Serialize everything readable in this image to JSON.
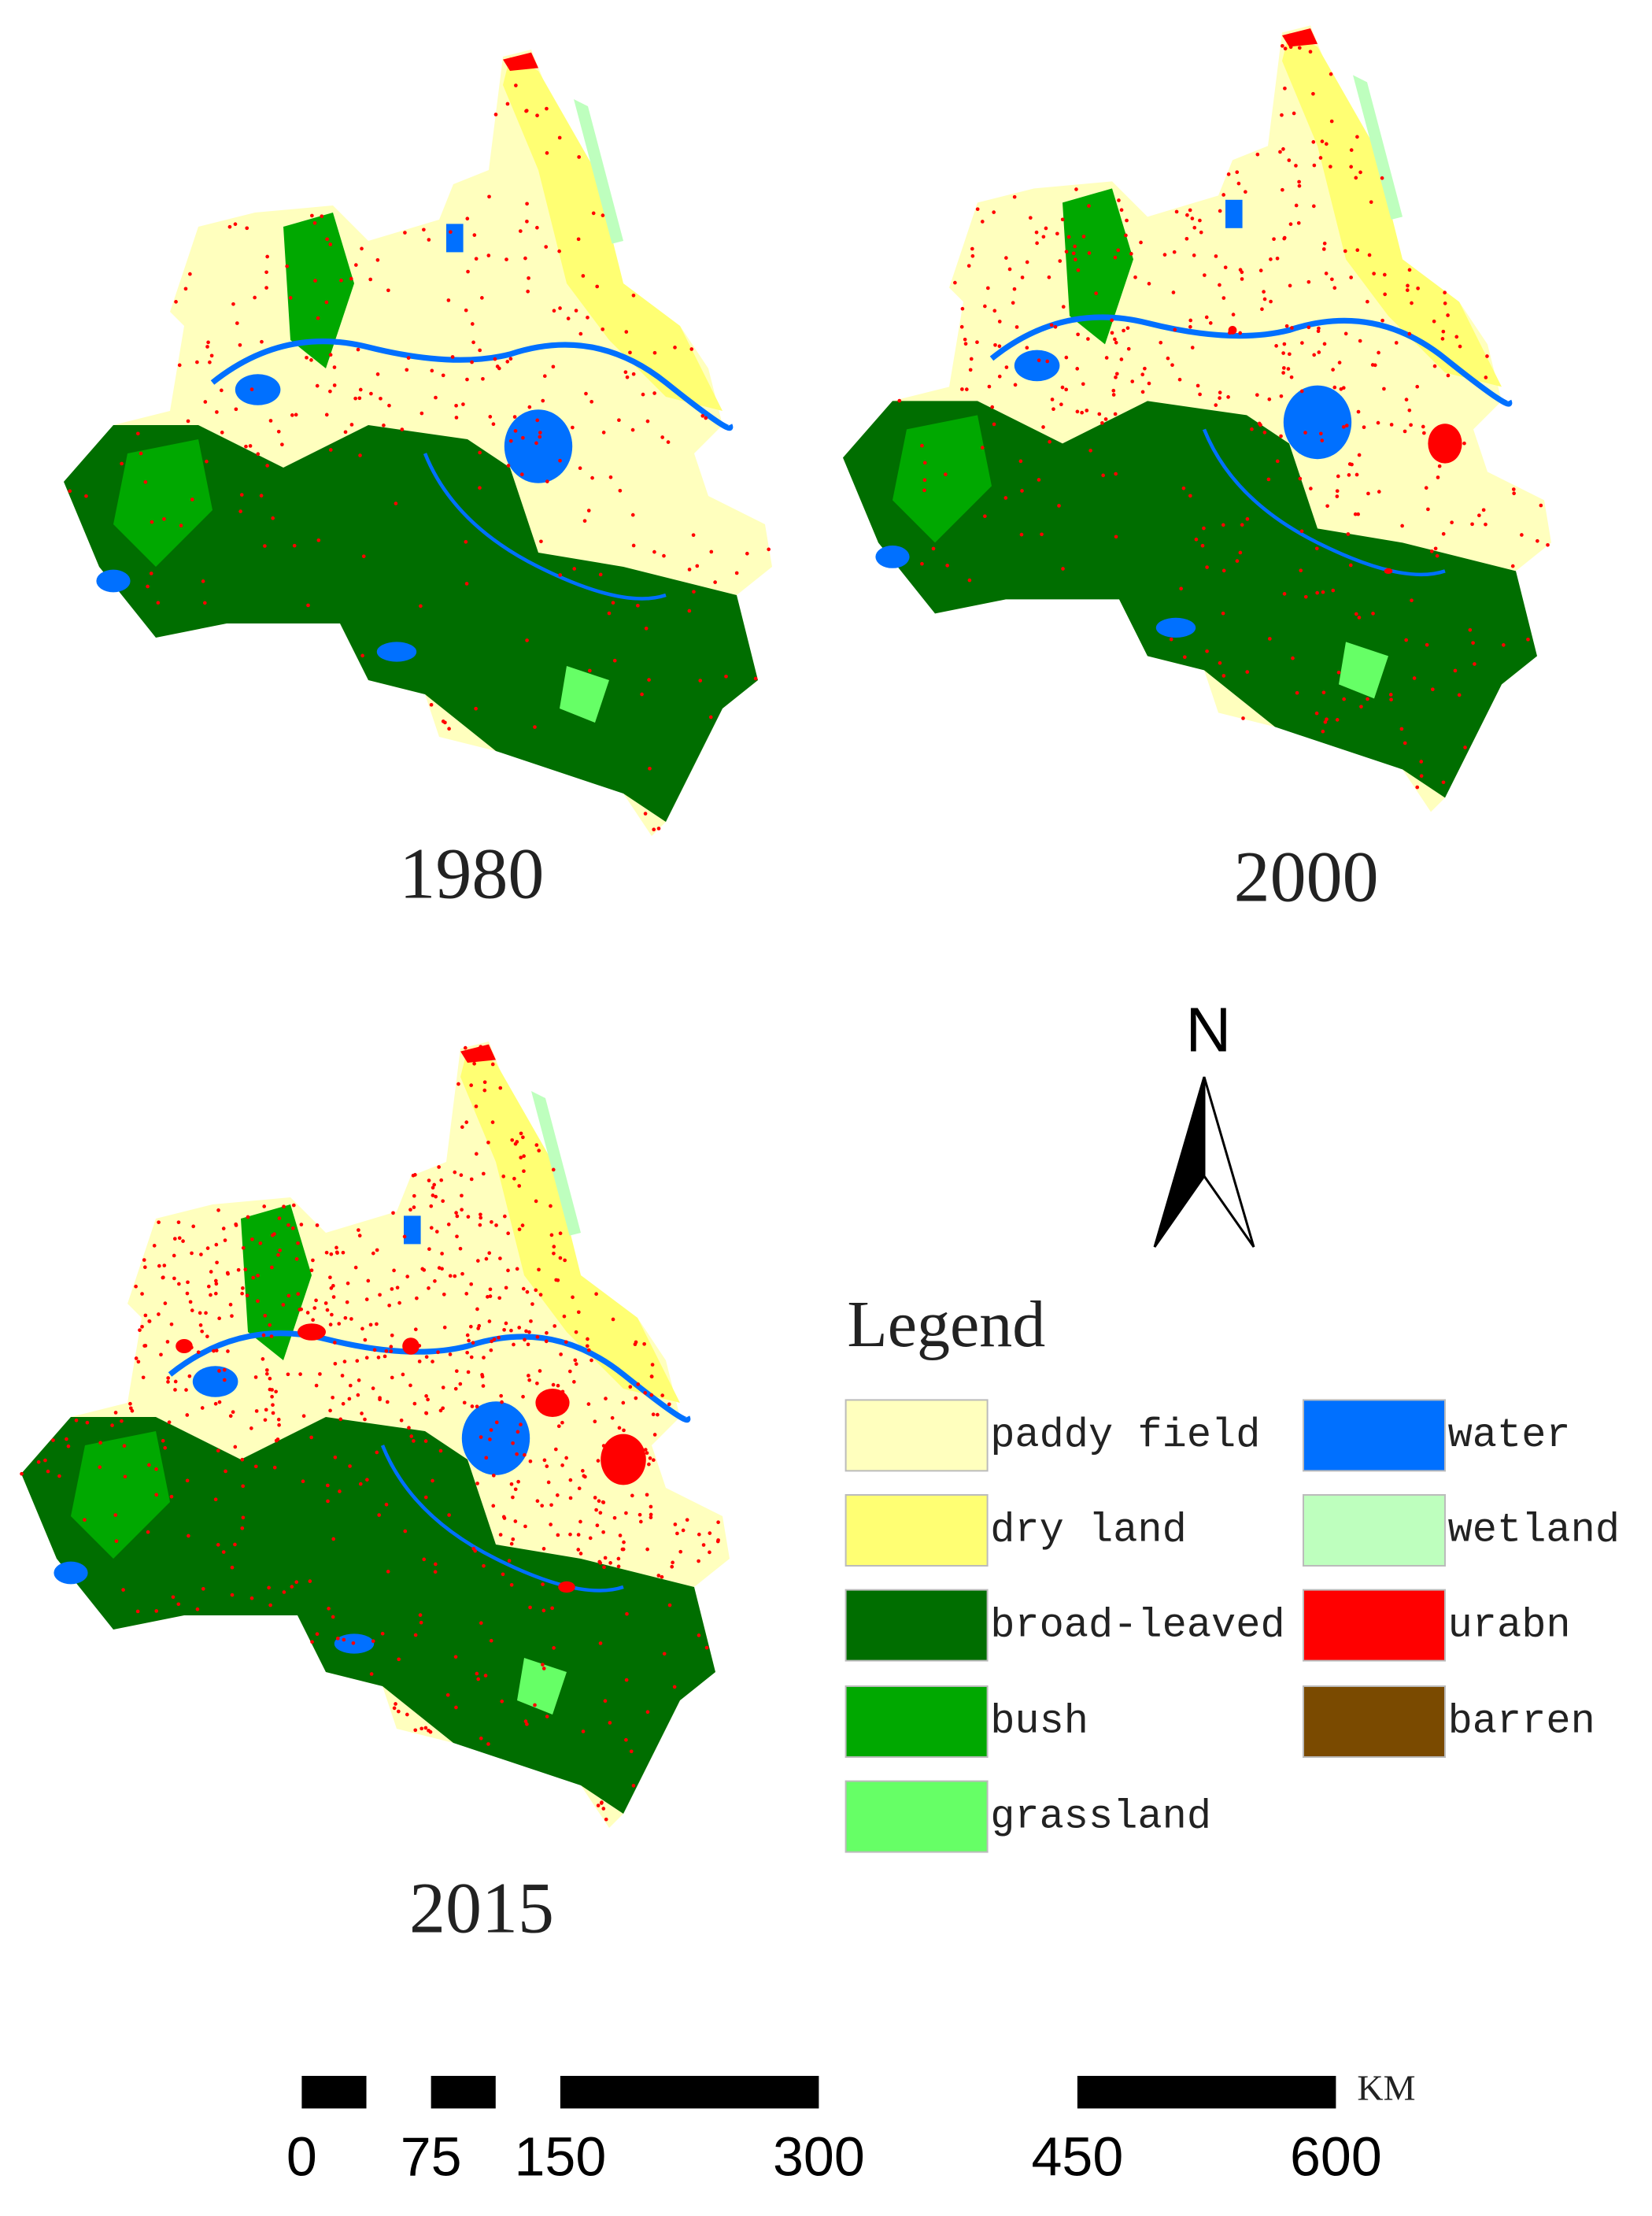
{
  "maps": [
    {
      "year": "1980"
    },
    {
      "year": "2000"
    },
    {
      "year": "2015"
    }
  ],
  "north_arrow": {
    "label": "N"
  },
  "legend": {
    "title": "Legend",
    "items": [
      {
        "name": "paddy field",
        "color": "#ffffbe"
      },
      {
        "name": "dry land",
        "color": "#ffff73"
      },
      {
        "name": "broad-leaved",
        "color": "#006e00"
      },
      {
        "name": "bush",
        "color": "#00a800"
      },
      {
        "name": "grassland",
        "color": "#66ff66"
      },
      {
        "name": "water",
        "color": "#0070ff"
      },
      {
        "name": "wetland",
        "color": "#beffbe"
      },
      {
        "name": "urabn",
        "color": "#ff0000"
      },
      {
        "name": "barren",
        "color": "#7a4a00"
      }
    ]
  },
  "scale_bar": {
    "unit": "KM",
    "ticks": [
      0,
      75,
      150,
      300,
      450,
      600
    ],
    "segments": [
      [
        0,
        37.5
      ],
      [
        75,
        112.5
      ],
      [
        150,
        300
      ],
      [
        450,
        600
      ]
    ]
  }
}
